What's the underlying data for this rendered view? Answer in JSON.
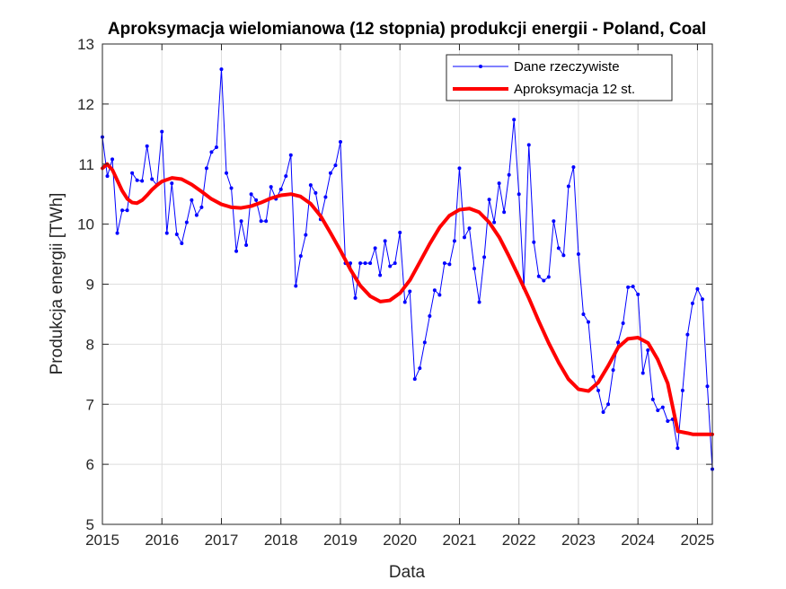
{
  "chart_data": {
    "type": "line",
    "title": "Aproksymacja wielomianowa (12 stopnia) produkcji energii - Poland, Coal",
    "xlabel": "Data",
    "ylabel": "Produkcja energii [TWh]",
    "xlim": [
      2015,
      2025.25
    ],
    "ylim": [
      5,
      13
    ],
    "x_ticks": [
      "2015",
      "2016",
      "2017",
      "2018",
      "2019",
      "2020",
      "2021",
      "2022",
      "2023",
      "2024",
      "2025"
    ],
    "y_ticks": [
      "5",
      "6",
      "7",
      "8",
      "9",
      "10",
      "11",
      "12",
      "13"
    ],
    "grid": true,
    "legend_position": "top-right",
    "series": [
      {
        "name": "Dane rzeczywiste",
        "color": "#0000ff",
        "style": "line-with-dots",
        "x_start": "2015-01",
        "frequency": "monthly",
        "values": [
          11.45,
          10.8,
          11.08,
          9.85,
          10.23,
          10.23,
          10.85,
          10.73,
          10.72,
          11.3,
          10.75,
          10.65,
          11.54,
          9.85,
          10.68,
          9.83,
          9.68,
          10.03,
          10.4,
          10.15,
          10.28,
          10.93,
          11.2,
          11.28,
          12.58,
          10.85,
          10.6,
          9.55,
          10.05,
          9.65,
          10.5,
          10.4,
          10.05,
          10.05,
          10.62,
          10.42,
          10.58,
          10.8,
          11.15,
          8.97,
          9.47,
          9.82,
          10.65,
          10.52,
          10.08,
          10.45,
          10.85,
          10.98,
          11.37,
          9.35,
          9.35,
          8.77,
          9.35,
          9.35,
          9.35,
          9.6,
          9.15,
          9.72,
          9.3,
          9.35,
          9.86,
          8.7,
          8.88,
          7.42,
          7.6,
          8.03,
          8.47,
          8.9,
          8.82,
          9.35,
          9.33,
          9.72,
          10.93,
          9.78,
          9.93,
          9.26,
          8.7,
          9.45,
          10.41,
          10.03,
          10.68,
          10.2,
          10.82,
          11.74,
          10.5,
          8.94,
          11.32,
          9.7,
          9.13,
          9.06,
          9.12,
          10.05,
          9.6,
          9.48,
          10.63,
          10.95,
          9.5,
          8.5,
          8.37,
          7.46,
          7.23,
          6.87,
          7.0,
          7.57,
          8.03,
          8.35,
          8.95,
          8.96,
          8.83,
          7.52,
          7.9,
          7.08,
          6.9,
          6.95,
          6.72,
          6.75,
          6.27,
          7.23,
          8.16,
          8.68,
          8.92,
          8.75,
          7.3,
          5.92
        ]
      },
      {
        "name": "Aproksymacja 12 st.",
        "color": "#ff0000",
        "style": "thick-line",
        "x": [
          2015.0,
          2015.08,
          2015.17,
          2015.25,
          2015.33,
          2015.42,
          2015.5,
          2015.58,
          2015.67,
          2015.75,
          2015.83,
          2015.92,
          2016.0,
          2016.17,
          2016.33,
          2016.5,
          2016.67,
          2016.83,
          2017.0,
          2017.17,
          2017.33,
          2017.5,
          2017.67,
          2017.83,
          2018.0,
          2018.17,
          2018.33,
          2018.5,
          2018.67,
          2018.83,
          2019.0,
          2019.17,
          2019.33,
          2019.5,
          2019.67,
          2019.83,
          2020.0,
          2020.17,
          2020.33,
          2020.5,
          2020.67,
          2020.83,
          2021.0,
          2021.17,
          2021.33,
          2021.5,
          2021.67,
          2021.83,
          2022.0,
          2022.17,
          2022.33,
          2022.5,
          2022.67,
          2022.83,
          2023.0,
          2023.17,
          2023.33,
          2023.5,
          2023.67,
          2023.83,
          2024.0,
          2024.17,
          2024.33,
          2024.5,
          2024.67,
          2024.83,
          2024.92,
          2025.0,
          2025.08,
          2025.17,
          2025.25
        ],
        "values": [
          10.93,
          11.0,
          10.9,
          10.73,
          10.56,
          10.42,
          10.36,
          10.35,
          10.4,
          10.48,
          10.57,
          10.65,
          10.71,
          10.77,
          10.75,
          10.66,
          10.54,
          10.42,
          10.33,
          10.28,
          10.27,
          10.3,
          10.36,
          10.43,
          10.48,
          10.5,
          10.46,
          10.34,
          10.13,
          9.86,
          9.56,
          9.24,
          8.98,
          8.8,
          8.71,
          8.73,
          8.85,
          9.07,
          9.36,
          9.67,
          9.95,
          10.14,
          10.24,
          10.26,
          10.2,
          10.03,
          9.78,
          9.47,
          9.12,
          8.76,
          8.39,
          8.02,
          7.69,
          7.42,
          7.25,
          7.22,
          7.36,
          7.64,
          7.95,
          8.09,
          8.11,
          8.02,
          7.75,
          7.35,
          6.55,
          6.52,
          6.5,
          6.5,
          6.5,
          6.5,
          6.5
        ]
      }
    ]
  }
}
